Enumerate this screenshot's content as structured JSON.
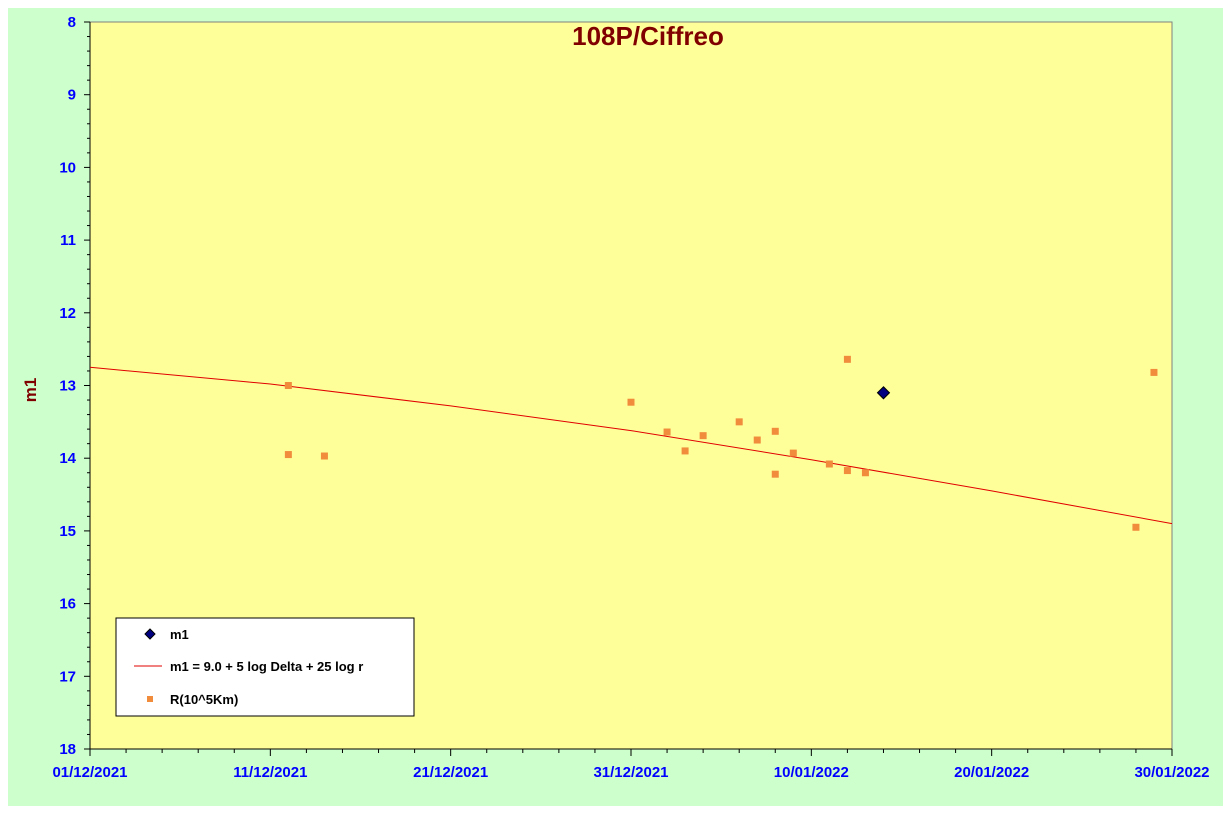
{
  "chart_data": {
    "type": "scatter",
    "title": "108P/Ciffreo",
    "xlabel": "",
    "ylabel": "m1",
    "xlim": [
      "2021-12-01",
      "2022-01-30"
    ],
    "ylim": [
      8,
      18
    ],
    "y_inverted": true,
    "x_ticks": [
      "01/12/2021",
      "11/12/2021",
      "21/12/2021",
      "31/12/2021",
      "10/01/2022",
      "20/01/2022",
      "30/01/2022"
    ],
    "y_ticks": [
      8,
      9,
      10,
      11,
      12,
      13,
      14,
      15,
      16,
      17,
      18
    ],
    "grid": false,
    "legend_position": "bottom-left",
    "colors": {
      "outer_background": "#ccffcc",
      "plot_background": "#ffff99",
      "m1_points": "#000080",
      "fit_line": "#e00000",
      "r_points": "#f08c3c",
      "tick_labels": "#0000ff",
      "title": "#800000"
    },
    "series": [
      {
        "name": "m1",
        "kind": "scatter",
        "marker": "diamond",
        "x": [
          "2022-01-14"
        ],
        "y": [
          13.1
        ]
      },
      {
        "name": "m1 = 9.0 + 5 log Delta + 25 log r",
        "kind": "line",
        "x": [
          "2021-12-01",
          "2021-12-11",
          "2021-12-21",
          "2021-12-31",
          "2022-01-10",
          "2022-01-20",
          "2022-01-30"
        ],
        "y": [
          12.75,
          12.98,
          13.28,
          13.62,
          14.02,
          14.45,
          14.9
        ]
      },
      {
        "name": "R(10^5Km)",
        "kind": "scatter",
        "marker": "square",
        "x": [
          "2021-12-12",
          "2021-12-12",
          "2021-12-14",
          "2021-12-31",
          "2022-01-02",
          "2022-01-03",
          "2022-01-04",
          "2022-01-06",
          "2022-01-07",
          "2022-01-08",
          "2022-01-08",
          "2022-01-09",
          "2022-01-11",
          "2022-01-12",
          "2022-01-12",
          "2022-01-13",
          "2022-01-28",
          "2022-01-29"
        ],
        "y": [
          13.0,
          13.95,
          13.97,
          13.23,
          13.64,
          13.9,
          13.69,
          13.5,
          13.75,
          14.22,
          13.63,
          13.93,
          14.08,
          12.64,
          14.17,
          14.2,
          14.95,
          12.82
        ]
      }
    ]
  }
}
